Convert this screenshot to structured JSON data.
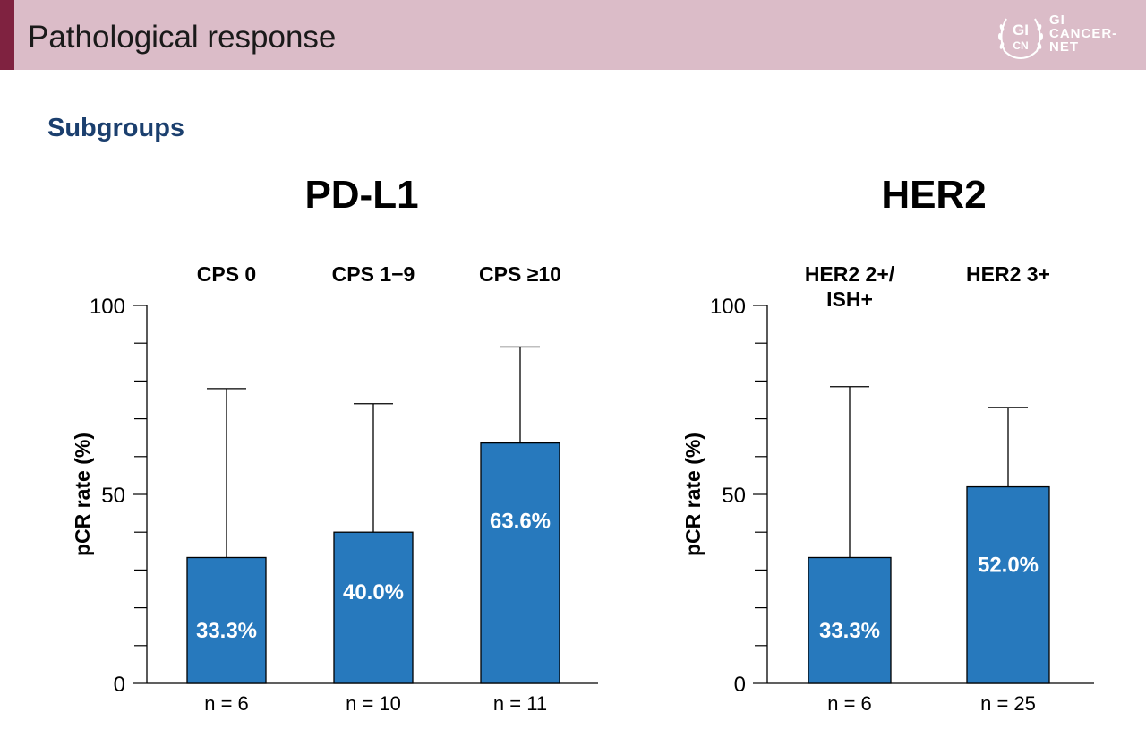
{
  "header": {
    "title": "Pathological response",
    "logo": {
      "monogram_top": "GI",
      "monogram_bottom": "CN",
      "line1": "GI",
      "line2": "CANCER-",
      "line3": "NET"
    }
  },
  "subtitle": "Subgroups",
  "colors": {
    "header_bg": "#dbbcc8",
    "accent": "#7f2240",
    "bar": "#2779bd",
    "subtitle": "#1b3f6e"
  },
  "chart_data": [
    {
      "type": "bar",
      "title": "PD-L1",
      "ylabel": "pCR rate (%)",
      "ylim": [
        0,
        100
      ],
      "yticks": [
        0,
        50,
        100
      ],
      "categories": [
        {
          "lines": [
            "CPS 0"
          ],
          "value": 33.3,
          "label": "33.3%",
          "error_upper": 78,
          "n": "n = 6"
        },
        {
          "lines": [
            "CPS 1−9"
          ],
          "value": 40.0,
          "label": "40.0%",
          "error_upper": 74,
          "n": "n = 10"
        },
        {
          "lines": [
            "CPS ≥10"
          ],
          "value": 63.6,
          "label": "63.6%",
          "error_upper": 89,
          "n": "n = 11"
        }
      ]
    },
    {
      "type": "bar",
      "title": "HER2",
      "ylabel": "pCR rate (%)",
      "ylim": [
        0,
        100
      ],
      "yticks": [
        0,
        50,
        100
      ],
      "categories": [
        {
          "lines": [
            "HER2 2+/",
            "ISH+"
          ],
          "value": 33.3,
          "label": "33.3%",
          "error_upper": 78.5,
          "n": "n = 6"
        },
        {
          "lines": [
            "HER2 3+"
          ],
          "value": 52.0,
          "label": "52.0%",
          "error_upper": 73,
          "n": "n = 25"
        }
      ]
    }
  ]
}
